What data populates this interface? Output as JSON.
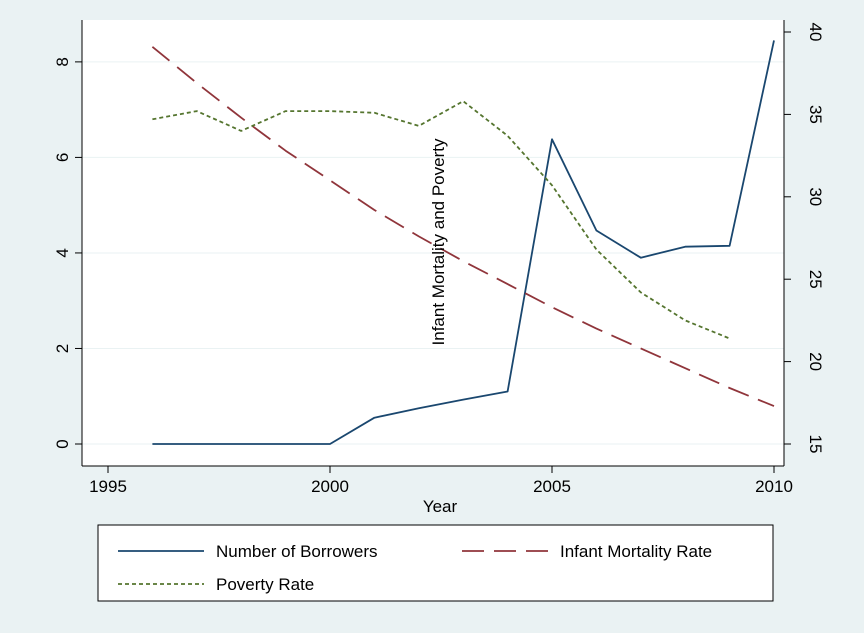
{
  "chart_data": {
    "type": "line",
    "title": "",
    "xlabel": "Year",
    "ylabel": "",
    "y2label": "Infant Mortality and Poverty",
    "xlim": [
      1995,
      2010
    ],
    "ylim": [
      0,
      8.5
    ],
    "y2lim": [
      15,
      40
    ],
    "x_ticks": [
      1995,
      2000,
      2005,
      2010
    ],
    "y_ticks": [
      0,
      2,
      4,
      6,
      8
    ],
    "y2_ticks": [
      15,
      20,
      25,
      30,
      35,
      40
    ],
    "grid": true,
    "legend_position": "bottom",
    "series": [
      {
        "name": "Number of Borrowers",
        "axis": "left",
        "color": "#1a476f",
        "dash": "solid",
        "x": [
          1996,
          1997,
          1998,
          1999,
          2000,
          2001,
          2002,
          2003,
          2004,
          2005,
          2006,
          2007,
          2008,
          2009,
          2010
        ],
        "y": [
          0,
          0,
          0,
          0,
          0,
          0.55,
          0.75,
          0.93,
          1.1,
          6.38,
          4.47,
          3.9,
          4.13,
          4.15,
          8.45
        ]
      },
      {
        "name": "Infant Mortality Rate",
        "axis": "right",
        "color": "#90353b",
        "dash": "long-dash",
        "x": [
          1996,
          1997,
          1998,
          1999,
          2000,
          2001,
          2002,
          2003,
          2004,
          2005,
          2006,
          2007,
          2008,
          2009,
          2010
        ],
        "y": [
          39.1,
          36.9,
          34.8,
          32.8,
          31.0,
          29.2,
          27.6,
          26.1,
          24.7,
          23.3,
          22.0,
          20.8,
          19.6,
          18.4,
          17.3
        ]
      },
      {
        "name": "Poverty Rate",
        "axis": "right",
        "color": "#55752f",
        "dash": "short-dash",
        "x": [
          1996,
          1997,
          1998,
          1999,
          2000,
          2001,
          2002,
          2003,
          2004,
          2005,
          2006,
          2007,
          2008,
          2009
        ],
        "y": [
          34.7,
          35.2,
          34.0,
          35.2,
          35.2,
          35.1,
          34.3,
          35.8,
          33.7,
          30.7,
          26.8,
          24.2,
          22.5,
          21.4
        ]
      }
    ]
  }
}
